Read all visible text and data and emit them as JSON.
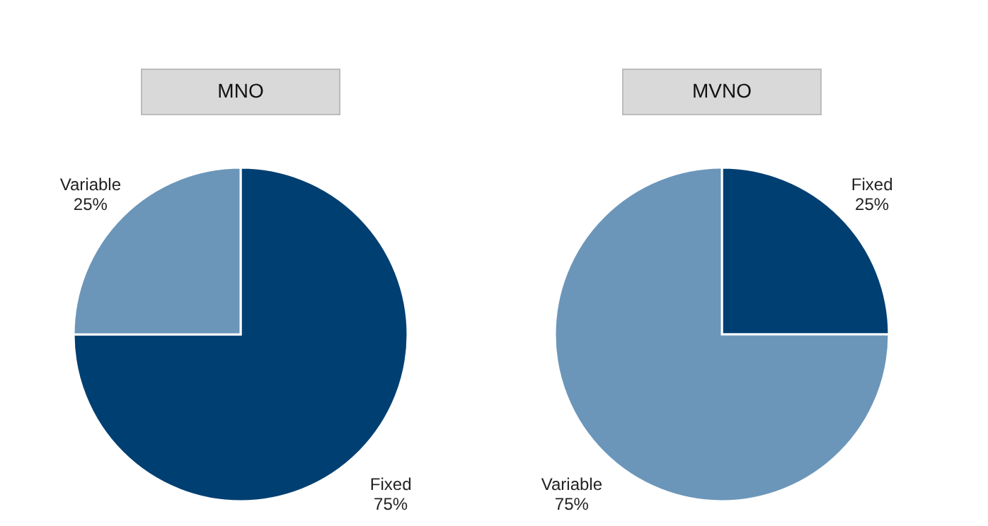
{
  "chart_data": [
    {
      "type": "pie",
      "title": "MNO",
      "categories": [
        "Fixed",
        "Variable"
      ],
      "values": [
        75,
        25
      ],
      "colors": [
        "#003f72",
        "#6b96b9"
      ],
      "value_labels": [
        "75%",
        "25%"
      ]
    },
    {
      "type": "pie",
      "title": "MVNO",
      "categories": [
        "Fixed",
        "Variable"
      ],
      "values": [
        25,
        75
      ],
      "colors": [
        "#003f72",
        "#6b96b9"
      ],
      "value_labels": [
        "25%",
        "75%"
      ]
    }
  ]
}
